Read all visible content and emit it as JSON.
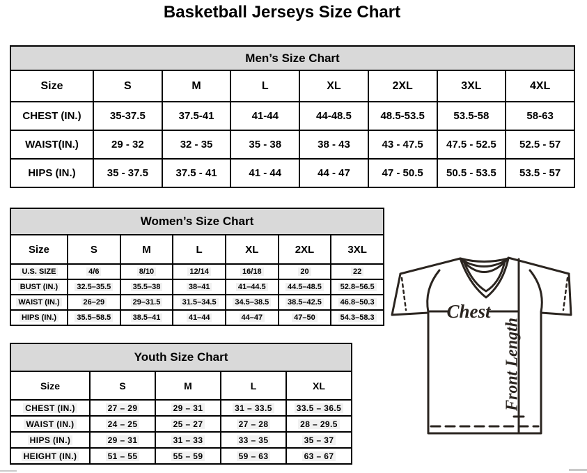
{
  "page": {
    "title": "Basketball Jerseys Size Chart"
  },
  "colors": {
    "caption_band": "#D9D9D9",
    "table_border": "#000000",
    "jersey_line": "#2B2520",
    "value_highlight": "#F1F1F1",
    "background": "#FFFFFF"
  },
  "tables": {
    "men": {
      "caption": "Men’s Size Chart",
      "header": [
        "Size",
        "S",
        "M",
        "L",
        "XL",
        "2XL",
        "3XL",
        "4XL"
      ],
      "rows": [
        {
          "label": "CHEST (IN.)",
          "values": [
            "35-37.5",
            "37.5-41",
            "41-44",
            "44-48.5",
            "48.5-53.5",
            "53.5-58",
            "58-63"
          ]
        },
        {
          "label": "WAIST(IN.)",
          "values": [
            "29 - 32",
            "32 - 35",
            "35 - 38",
            "38 - 43",
            "43 - 47.5",
            "47.5 - 52.5",
            "52.5 - 57"
          ]
        },
        {
          "label": "HIPS (IN.)",
          "values": [
            "35 - 37.5",
            "37.5 - 41",
            "41 - 44",
            "44 - 47",
            "47 - 50.5",
            "50.5 - 53.5",
            "53.5 - 57"
          ]
        }
      ]
    },
    "women": {
      "caption": "Women’s Size Chart",
      "header": [
        "Size",
        "S",
        "M",
        "L",
        "XL",
        "2XL",
        "3XL"
      ],
      "rows": [
        {
          "label": "U.S. SIZE",
          "values": [
            "4/6",
            "8/10",
            "12/14",
            "16/18",
            "20",
            "22"
          ]
        },
        {
          "label": "BUST (IN.)",
          "values": [
            "32.5–35.5",
            "35.5–38",
            "38–41",
            "41–44.5",
            "44.5–48.5",
            "52.8–56.5"
          ]
        },
        {
          "label": "WAIST (IN.)",
          "values": [
            "26–29",
            "29–31.5",
            "31.5–34.5",
            "34.5–38.5",
            "38.5–42.5",
            "46.8–50.3"
          ]
        },
        {
          "label": "HIPS (IN.)",
          "values": [
            "35.5–58.5",
            "38.5–41",
            "41–44",
            "44–47",
            "47–50",
            "54.3–58.3"
          ]
        }
      ]
    },
    "youth": {
      "caption": "Youth Size Chart",
      "header": [
        "Size",
        "S",
        "M",
        "L",
        "XL"
      ],
      "rows": [
        {
          "label": "CHEST (IN.)",
          "values": [
            "27 – 29",
            "29 – 31",
            "31 – 33.5",
            "33.5 – 36.5"
          ]
        },
        {
          "label": "WAIST (IN.)",
          "values": [
            "24 – 25",
            "25 – 27",
            "27 – 28",
            "28 – 29.5"
          ]
        },
        {
          "label": "HIPS (IN.)",
          "values": [
            "29 – 31",
            "31 – 33",
            "33 – 35",
            "35 – 37"
          ]
        },
        {
          "label": "HEIGHT (IN.)",
          "values": [
            "51 – 55",
            "55 – 59",
            "59 – 63",
            "63 – 67"
          ]
        }
      ]
    }
  },
  "diagram": {
    "chest_label": "Chest",
    "front_length_label": "Front Length"
  }
}
